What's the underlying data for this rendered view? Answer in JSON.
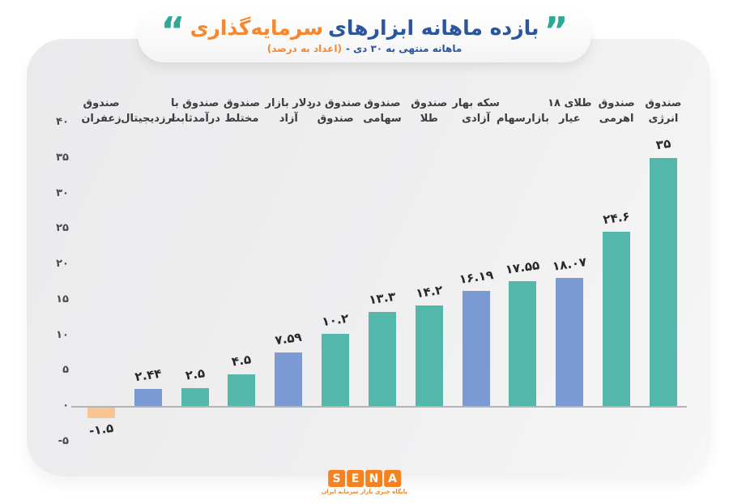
{
  "header": {
    "quote_right": "”",
    "quote_left": "“",
    "title_blue": "بازده ماهانه ابزارهای",
    "title_orange": "سرمایه‌گذاری",
    "subtitle_blue": "ماهانه منتهی به ۳۰ دی -",
    "subtitle_orange": "(اعداد به درصد)",
    "colors": {
      "blue": "#2b569e",
      "orange": "#f6872f",
      "quote_teal": "#2fa796"
    }
  },
  "chart_data": {
    "type": "bar",
    "title": "بازده ماهانه ابزارهای سرمایه‌گذاری",
    "subtitle": "ماهانه منتهی به ۳۰ دی - (اعداد به درصد)",
    "unit": "درصد",
    "order": "left-to-right as displayed (chart reads right-to-left, best performer at right)",
    "categories": [
      {
        "name": "صندوق زعفران",
        "line1": "صندوق",
        "line2": "زعفران"
      },
      {
        "name": "ارزدیجیتال",
        "line1": "",
        "line2": "ارزدیجیتال"
      },
      {
        "name": "صندوق با درآمدثابت",
        "line1": "صندوق با",
        "line2": "درآمدثابت"
      },
      {
        "name": "صندوق مختلط",
        "line1": "صندوق",
        "line2": "مختلط"
      },
      {
        "name": "دلار بازار آزاد",
        "line1": "دلار بازار",
        "line2": "آزاد"
      },
      {
        "name": "صندوق در صندوق",
        "line1": "صندوق در",
        "line2": "صندوق"
      },
      {
        "name": "صندوق سهامی",
        "line1": "صندوق",
        "line2": "سهامی"
      },
      {
        "name": "صندوق طلا",
        "line1": "صندوق",
        "line2": "طلا"
      },
      {
        "name": "سکه بهار آزادی",
        "line1": "سکه بهار",
        "line2": "آزادی"
      },
      {
        "name": "بازارسهام",
        "line1": "",
        "line2": "بازارسهام"
      },
      {
        "name": "طلای ۱۸ عیار",
        "line1": "طلای ۱۸",
        "line2": "عیار"
      },
      {
        "name": "صندوق اهرمی",
        "line1": "صندوق",
        "line2": "اهرمی"
      },
      {
        "name": "صندوق انرژی",
        "line1": "صندوق",
        "line2": "انرژی"
      }
    ],
    "values": [
      -1.5,
      2.44,
      2.5,
      4.5,
      7.59,
      10.2,
      13.3,
      14.2,
      16.19,
      17.55,
      18.07,
      24.6,
      35
    ],
    "value_labels": [
      "-۱.۵",
      "۲.۴۴",
      "۲.۵",
      "۴.۵",
      "۷.۵۹",
      "۱۰.۲",
      "۱۳.۳",
      "۱۴.۲",
      "۱۶.۱۹",
      "۱۷.۵۵",
      "۱۸.۰۷",
      "۲۴.۶",
      "۳۵"
    ],
    "bar_colors": [
      "orange",
      "blue",
      "teal",
      "teal",
      "blue",
      "teal",
      "teal",
      "teal",
      "blue",
      "teal",
      "blue",
      "teal",
      "teal"
    ],
    "colors": {
      "teal": "#53b8ab",
      "blue": "#7b9ad4",
      "orange": "#f8c492"
    },
    "yticks": {
      "values": [
        40,
        35,
        30,
        25,
        20,
        15,
        10,
        5,
        0,
        -5
      ],
      "labels": [
        "۴۰",
        "۳۵",
        "۳۰",
        "۲۵",
        "۲۰",
        "۱۵",
        "۱۰",
        "۵",
        "۰",
        "-۵"
      ]
    },
    "ylim": [
      -5,
      40
    ],
    "grid": false,
    "legend": "none",
    "baseline_color": "#b3b3b6"
  },
  "footer_logo": {
    "letters": [
      "S",
      "E",
      "N",
      "A"
    ],
    "tile_color": "#f58220",
    "tagline": "پایگاه خبری بازار سرمایه ایران"
  }
}
